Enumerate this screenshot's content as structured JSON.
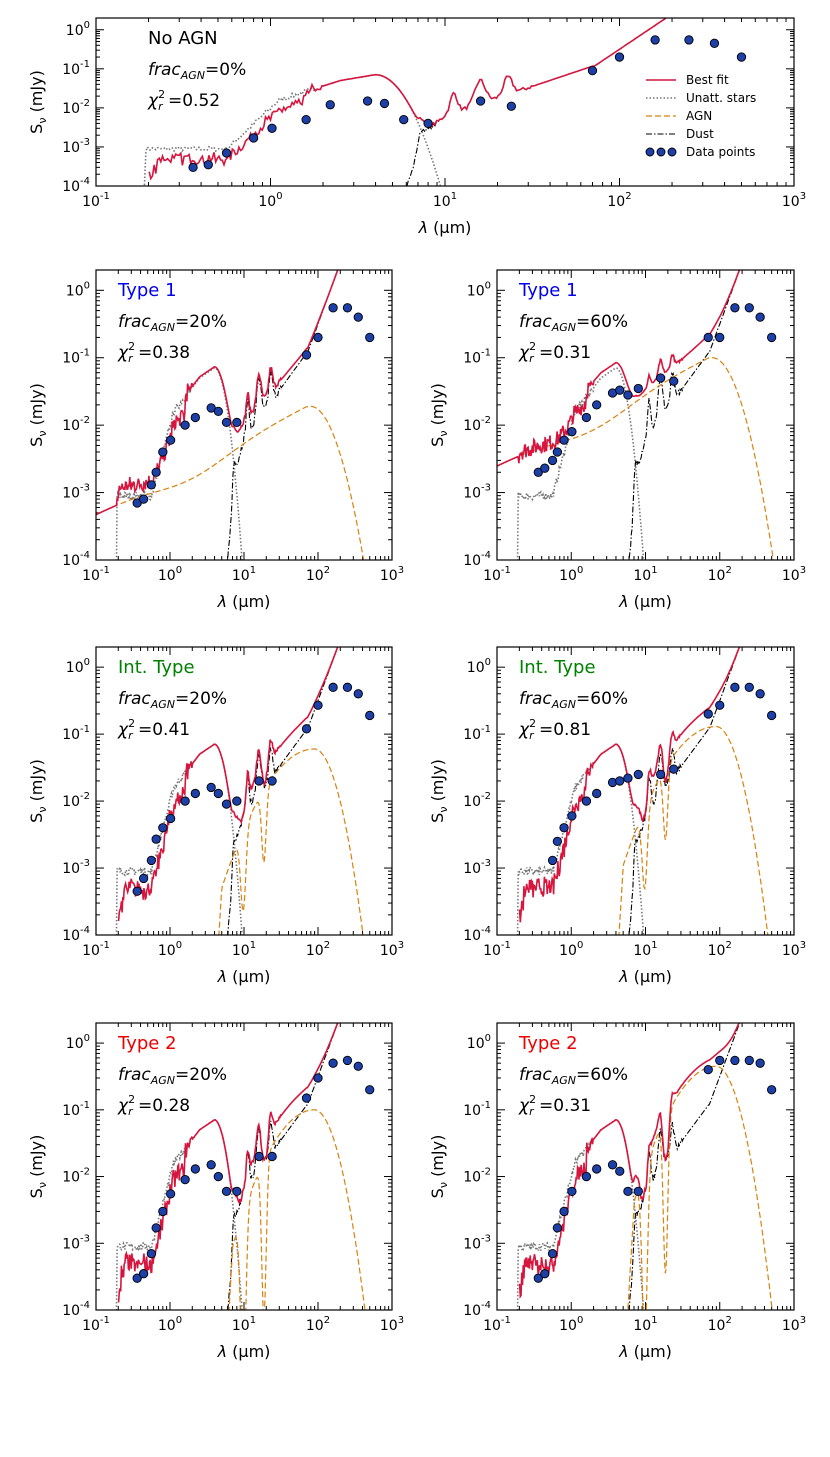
{
  "colors": {
    "best_fit": "#d6163e",
    "stars": "#777777",
    "agn": "#d9820d",
    "dust": "#000000",
    "point_fill": "#1c3fa8",
    "type1": "#0000ee",
    "int_type": "#008000",
    "type2": "#ee0000",
    "no_agn": "#000000"
  },
  "legend": {
    "best_fit": "Best fit",
    "stars": "Unatt. stars",
    "agn": "AGN",
    "dust": "Dust",
    "points": "Data points"
  },
  "axes": {
    "xlabel_sym": "λ",
    "xlabel_unit": "(μm)",
    "ylabel_sym": "S",
    "ylabel_sub": "ν",
    "ylabel_unit": "(mJy)",
    "xticks": [
      {
        "base": "10",
        "exp": "-1"
      },
      {
        "base": "10",
        "exp": "0"
      },
      {
        "base": "10",
        "exp": "1"
      },
      {
        "base": "10",
        "exp": "2"
      },
      {
        "base": "10",
        "exp": "3"
      }
    ],
    "yticks": [
      {
        "base": "10",
        "exp": "-4"
      },
      {
        "base": "10",
        "exp": "-3"
      },
      {
        "base": "10",
        "exp": "-2"
      },
      {
        "base": "10",
        "exp": "-1"
      },
      {
        "base": "10",
        "exp": "0"
      }
    ]
  },
  "chart_data": [
    {
      "type": "line",
      "title": "No AGN",
      "title_color": "no_agn",
      "frac_prefix": "frac",
      "frac_sub": "AGN",
      "frac_value": "=0%",
      "chi_sym": "χ",
      "chi_sub": "r",
      "chi_sup": "2",
      "chi_value": "=0.52",
      "xscale": "log",
      "yscale": "log",
      "xlim": [
        0.1,
        1000
      ],
      "ylim": [
        0.0001,
        2
      ],
      "agn_frac": 0,
      "agn_kind": "none",
      "agn_peak": 0,
      "points_x": [
        0.36,
        0.44,
        0.56,
        0.8,
        1.02,
        1.6,
        2.2,
        3.6,
        4.5,
        5.8,
        8,
        16,
        24,
        70,
        100,
        160,
        250,
        350,
        500
      ],
      "points_y": [
        0.0003,
        0.00035,
        0.0007,
        0.0017,
        0.003,
        0.005,
        0.012,
        0.015,
        0.013,
        0.005,
        0.004,
        0.015,
        0.011,
        0.09,
        0.2,
        0.55,
        0.55,
        0.45,
        0.2
      ]
    },
    {
      "type": "line",
      "title": "Type 1",
      "title_color": "type1",
      "frac_prefix": "frac",
      "frac_sub": "AGN",
      "frac_value": "=20%",
      "chi_sym": "χ",
      "chi_sub": "r",
      "chi_sup": "2",
      "chi_value": "=0.38",
      "xscale": "log",
      "yscale": "log",
      "xlim": [
        0.1,
        1000
      ],
      "ylim": [
        0.0001,
        2
      ],
      "agn_frac": 0.2,
      "agn_kind": "type1",
      "agn_peak": 0.019,
      "points_x": [
        0.36,
        0.44,
        0.56,
        0.65,
        0.8,
        1.02,
        1.6,
        2.2,
        3.6,
        4.5,
        5.8,
        8,
        70,
        100,
        160,
        250,
        350,
        500
      ],
      "points_y": [
        0.0007,
        0.0008,
        0.0013,
        0.002,
        0.004,
        0.006,
        0.01,
        0.013,
        0.018,
        0.016,
        0.011,
        0.011,
        0.11,
        0.2,
        0.55,
        0.55,
        0.4,
        0.2
      ]
    },
    {
      "type": "line",
      "title": "Type 1",
      "title_color": "type1",
      "frac_prefix": "frac",
      "frac_sub": "AGN",
      "frac_value": "=60%",
      "chi_sym": "χ",
      "chi_sub": "r",
      "chi_sup": "2",
      "chi_value": "=0.31",
      "xscale": "log",
      "yscale": "log",
      "xlim": [
        0.1,
        1000
      ],
      "ylim": [
        0.0001,
        2
      ],
      "agn_frac": 0.6,
      "agn_kind": "type1",
      "agn_peak": 0.1,
      "points_x": [
        0.36,
        0.44,
        0.56,
        0.65,
        0.8,
        1.02,
        1.6,
        2.2,
        3.6,
        4.5,
        5.8,
        8,
        16,
        24,
        70,
        100,
        160,
        250,
        350,
        500
      ],
      "points_y": [
        0.002,
        0.0023,
        0.003,
        0.004,
        0.006,
        0.008,
        0.013,
        0.02,
        0.03,
        0.033,
        0.028,
        0.035,
        0.05,
        0.045,
        0.2,
        0.2,
        0.55,
        0.55,
        0.4,
        0.2
      ]
    },
    {
      "type": "line",
      "title": "Int. Type",
      "title_color": "int_type",
      "frac_prefix": "frac",
      "frac_sub": "AGN",
      "frac_value": "=20%",
      "chi_sym": "χ",
      "chi_sub": "r",
      "chi_sup": "2",
      "chi_value": "=0.41",
      "xscale": "log",
      "yscale": "log",
      "xlim": [
        0.1,
        1000
      ],
      "ylim": [
        0.0001,
        2
      ],
      "agn_frac": 0.2,
      "agn_kind": "inter",
      "agn_peak": 0.06,
      "points_x": [
        0.36,
        0.44,
        0.56,
        0.65,
        0.8,
        1.02,
        1.6,
        2.2,
        3.6,
        4.5,
        5.8,
        8,
        16,
        24,
        70,
        100,
        160,
        250,
        350,
        500
      ],
      "points_y": [
        0.00045,
        0.0007,
        0.0013,
        0.0027,
        0.004,
        0.0055,
        0.01,
        0.013,
        0.016,
        0.013,
        0.009,
        0.01,
        0.02,
        0.02,
        0.12,
        0.27,
        0.5,
        0.5,
        0.4,
        0.19
      ]
    },
    {
      "type": "line",
      "title": "Int. Type",
      "title_color": "int_type",
      "frac_prefix": "frac",
      "frac_sub": "AGN",
      "frac_value": "=60%",
      "chi_sym": "χ",
      "chi_sub": "r",
      "chi_sup": "2",
      "chi_value": "=0.81",
      "xscale": "log",
      "yscale": "log",
      "xlim": [
        0.1,
        1000
      ],
      "ylim": [
        0.0001,
        2
      ],
      "agn_frac": 0.6,
      "agn_kind": "inter",
      "agn_peak": 0.13,
      "points_x": [
        0.56,
        0.65,
        0.8,
        1.02,
        1.6,
        2.2,
        3.6,
        4.5,
        5.8,
        8,
        16,
        24,
        70,
        100,
        160,
        250,
        350,
        500
      ],
      "points_y": [
        0.0013,
        0.0025,
        0.004,
        0.006,
        0.01,
        0.013,
        0.019,
        0.02,
        0.022,
        0.025,
        0.025,
        0.03,
        0.2,
        0.27,
        0.5,
        0.5,
        0.4,
        0.19
      ]
    },
    {
      "type": "line",
      "title": "Type 2",
      "title_color": "type2",
      "frac_prefix": "frac",
      "frac_sub": "AGN",
      "frac_value": "=20%",
      "chi_sym": "χ",
      "chi_sub": "r",
      "chi_sup": "2",
      "chi_value": "=0.28",
      "xscale": "log",
      "yscale": "log",
      "xlim": [
        0.1,
        1000
      ],
      "ylim": [
        0.0001,
        2
      ],
      "agn_frac": 0.2,
      "agn_kind": "type2",
      "agn_peak": 0.1,
      "points_x": [
        0.36,
        0.44,
        0.56,
        0.65,
        0.8,
        1.02,
        1.6,
        2.2,
        3.6,
        4.5,
        5.8,
        8,
        16,
        24,
        70,
        100,
        160,
        250,
        350,
        500
      ],
      "points_y": [
        0.0003,
        0.00035,
        0.0007,
        0.0017,
        0.003,
        0.0055,
        0.009,
        0.013,
        0.015,
        0.01,
        0.006,
        0.006,
        0.02,
        0.02,
        0.15,
        0.3,
        0.5,
        0.55,
        0.45,
        0.2
      ]
    },
    {
      "type": "line",
      "title": "Type 2",
      "title_color": "type2",
      "frac_prefix": "frac",
      "frac_sub": "AGN",
      "frac_value": "=60%",
      "chi_sym": "χ",
      "chi_sub": "r",
      "chi_sup": "2",
      "chi_value": "=0.31",
      "xscale": "log",
      "yscale": "log",
      "xlim": [
        0.1,
        1000
      ],
      "ylim": [
        0.0001,
        2
      ],
      "agn_frac": 0.6,
      "agn_kind": "type2",
      "agn_peak": 0.45,
      "points_x": [
        0.36,
        0.44,
        0.56,
        0.65,
        0.8,
        1.02,
        1.6,
        2.2,
        3.6,
        4.5,
        5.8,
        8,
        70,
        100,
        160,
        250,
        350,
        500
      ],
      "points_y": [
        0.0003,
        0.00035,
        0.0007,
        0.0017,
        0.003,
        0.006,
        0.01,
        0.013,
        0.015,
        0.012,
        0.006,
        0.006,
        0.4,
        0.55,
        0.55,
        0.55,
        0.5,
        0.2
      ]
    }
  ]
}
